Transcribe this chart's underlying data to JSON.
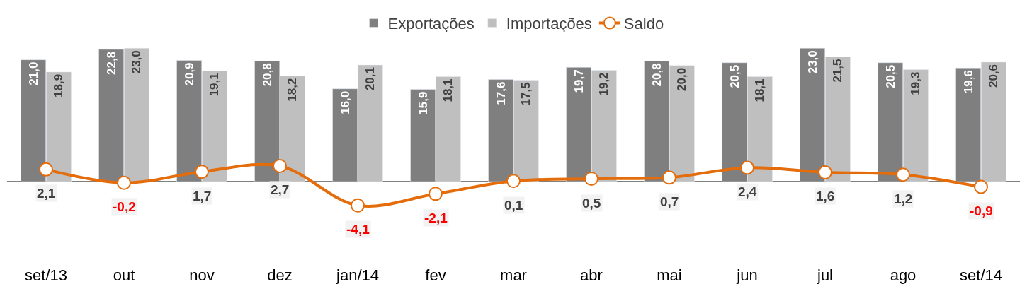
{
  "chart_data": {
    "type": "bar",
    "categories": [
      "set/13",
      "out",
      "nov",
      "dez",
      "jan/14",
      "fev",
      "mar",
      "abr",
      "mai",
      "jun",
      "jul",
      "ago",
      "set/14"
    ],
    "series": [
      {
        "name": "Exportações",
        "color": "#7f7f7f",
        "values": [
          21.0,
          22.8,
          20.9,
          20.8,
          16.0,
          15.9,
          17.6,
          19.7,
          20.8,
          20.5,
          23.0,
          20.5,
          19.6
        ],
        "value_labels": [
          "21,0",
          "22,8",
          "20,9",
          "20,8",
          "16,0",
          "15,9",
          "17,6",
          "19,7",
          "20,8",
          "20,5",
          "23,0",
          "20,5",
          "19,6"
        ]
      },
      {
        "name": "Importações",
        "color": "#bfbfbf",
        "values": [
          18.9,
          23.0,
          19.1,
          18.2,
          20.1,
          18.1,
          17.5,
          19.2,
          20.0,
          18.1,
          21.5,
          19.3,
          20.6
        ],
        "value_labels": [
          "18,9",
          "23,0",
          "19,1",
          "18,2",
          "20,1",
          "18,1",
          "17,5",
          "19,2",
          "20,0",
          "18,1",
          "21,5",
          "19,3",
          "20,6"
        ]
      },
      {
        "name": "Saldo",
        "type": "line",
        "color": "#e46c0a",
        "marker": "circle",
        "values": [
          2.1,
          -0.2,
          1.7,
          2.7,
          -4.1,
          -2.1,
          0.1,
          0.5,
          0.7,
          2.4,
          1.6,
          1.2,
          -0.9
        ],
        "value_labels": [
          "2,1",
          "-0,2",
          "1,7",
          "2,7",
          "-4,1",
          "-2,1",
          "0,1",
          "0,5",
          "0,7",
          "2,4",
          "1,6",
          "1,2",
          "-0,9"
        ]
      }
    ],
    "legend": "top"
  }
}
